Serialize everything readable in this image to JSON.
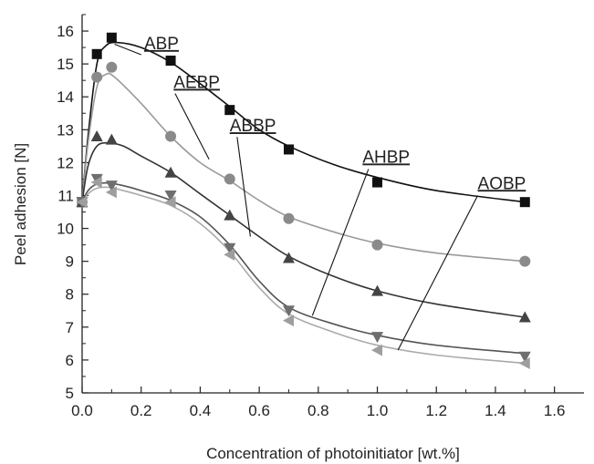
{
  "chart_data": {
    "type": "scatter",
    "xlabel": "Concentration of photoinitiator [wt.%]",
    "ylabel": "Peel adhesion [N]",
    "xlim": [
      0.0,
      1.7
    ],
    "ylim": [
      5,
      16.5
    ],
    "x_ticks": [
      "0.0",
      "0.2",
      "0.4",
      "0.6",
      "0.8",
      "1.0",
      "1.2",
      "1.4",
      "1.6"
    ],
    "y_ticks": [
      "5",
      "6",
      "7",
      "8",
      "9",
      "10",
      "11",
      "12",
      "13",
      "14",
      "15",
      "16"
    ],
    "grid": false,
    "legend": "inline-labels",
    "series": [
      {
        "name": "ABP",
        "marker": "square",
        "color": "#111111",
        "curve_color": "#111111",
        "x": [
          0.0,
          0.05,
          0.1,
          0.3,
          0.5,
          0.7,
          1.0,
          1.5
        ],
        "y": [
          10.8,
          15.3,
          15.8,
          15.1,
          13.6,
          12.4,
          11.4,
          10.8
        ],
        "curve": [
          [
            0.0,
            10.8
          ],
          [
            0.02,
            12.8
          ],
          [
            0.05,
            15.0
          ],
          [
            0.08,
            15.55
          ],
          [
            0.12,
            15.65
          ],
          [
            0.2,
            15.5
          ],
          [
            0.3,
            15.05
          ],
          [
            0.4,
            14.4
          ],
          [
            0.5,
            13.7
          ],
          [
            0.6,
            13.0
          ],
          [
            0.7,
            12.5
          ],
          [
            0.85,
            11.95
          ],
          [
            1.0,
            11.55
          ],
          [
            1.2,
            11.15
          ],
          [
            1.5,
            10.8
          ]
        ],
        "label_at": [
          0.21,
          15.45
        ],
        "leader_from": [
          0.2,
          15.28
        ],
        "leader_to": [
          0.11,
          15.6
        ]
      },
      {
        "name": "AEBP",
        "marker": "circle",
        "color": "#8a8a8a",
        "curve_color": "#9a9a9a",
        "x": [
          0.0,
          0.05,
          0.1,
          0.3,
          0.5,
          0.7,
          1.0,
          1.5
        ],
        "y": [
          10.8,
          14.6,
          14.9,
          12.8,
          11.5,
          10.3,
          9.5,
          9.0
        ],
        "curve": [
          [
            0.0,
            10.8
          ],
          [
            0.02,
            12.6
          ],
          [
            0.05,
            14.3
          ],
          [
            0.08,
            14.68
          ],
          [
            0.11,
            14.6
          ],
          [
            0.2,
            13.8
          ],
          [
            0.3,
            12.8
          ],
          [
            0.4,
            12.0
          ],
          [
            0.5,
            11.45
          ],
          [
            0.6,
            10.85
          ],
          [
            0.7,
            10.35
          ],
          [
            0.85,
            9.9
          ],
          [
            1.0,
            9.55
          ],
          [
            1.2,
            9.25
          ],
          [
            1.5,
            9.0
          ]
        ],
        "label_at": [
          0.31,
          14.27
        ],
        "leader_from": [
          0.315,
          14.1
        ],
        "leader_to": [
          0.43,
          12.1
        ]
      },
      {
        "name": "ABBP",
        "marker": "triangle-up",
        "color": "#444444",
        "curve_color": "#333333",
        "x": [
          0.0,
          0.05,
          0.1,
          0.3,
          0.5,
          0.7,
          1.0,
          1.5
        ],
        "y": [
          10.8,
          12.8,
          12.7,
          11.7,
          10.4,
          9.1,
          8.1,
          7.3
        ],
        "curve": [
          [
            0.0,
            10.8
          ],
          [
            0.02,
            11.9
          ],
          [
            0.05,
            12.5
          ],
          [
            0.09,
            12.6
          ],
          [
            0.14,
            12.5
          ],
          [
            0.2,
            12.2
          ],
          [
            0.3,
            11.7
          ],
          [
            0.4,
            11.05
          ],
          [
            0.5,
            10.4
          ],
          [
            0.6,
            9.75
          ],
          [
            0.7,
            9.15
          ],
          [
            0.85,
            8.55
          ],
          [
            1.0,
            8.1
          ],
          [
            1.2,
            7.7
          ],
          [
            1.5,
            7.3
          ]
        ],
        "label_at": [
          0.5,
          12.95
        ],
        "leader_from": [
          0.525,
          12.78
        ],
        "leader_to": [
          0.57,
          9.75
        ]
      },
      {
        "name": "AHBP",
        "marker": "triangle-down",
        "color": "#6e6e6e",
        "curve_color": "#555555",
        "x": [
          0.0,
          0.05,
          0.1,
          0.3,
          0.5,
          0.7,
          1.0,
          1.5
        ],
        "y": [
          10.8,
          11.5,
          11.3,
          11.0,
          9.4,
          7.5,
          6.7,
          6.1
        ],
        "curve": [
          [
            0.0,
            10.8
          ],
          [
            0.02,
            11.15
          ],
          [
            0.05,
            11.35
          ],
          [
            0.09,
            11.38
          ],
          [
            0.14,
            11.3
          ],
          [
            0.2,
            11.15
          ],
          [
            0.3,
            10.85
          ],
          [
            0.4,
            10.35
          ],
          [
            0.5,
            9.5
          ],
          [
            0.6,
            8.4
          ],
          [
            0.7,
            7.6
          ],
          [
            0.85,
            7.1
          ],
          [
            1.0,
            6.75
          ],
          [
            1.2,
            6.45
          ],
          [
            1.5,
            6.2
          ]
        ],
        "label_at": [
          0.95,
          12.0
        ],
        "leader_from": [
          0.97,
          11.8
        ],
        "leader_to": [
          0.78,
          7.35
        ]
      },
      {
        "name": "AOBP",
        "marker": "triangle-left",
        "color": "#9e9e9e",
        "curve_color": "#aaaaaa",
        "x": [
          0.0,
          0.05,
          0.1,
          0.3,
          0.5,
          0.7,
          1.0,
          1.5
        ],
        "y": [
          10.8,
          11.4,
          11.1,
          10.8,
          9.2,
          7.2,
          6.3,
          5.9
        ],
        "curve": [
          [
            0.0,
            10.8
          ],
          [
            0.02,
            11.05
          ],
          [
            0.05,
            11.22
          ],
          [
            0.09,
            11.25
          ],
          [
            0.14,
            11.15
          ],
          [
            0.2,
            11.0
          ],
          [
            0.3,
            10.7
          ],
          [
            0.4,
            10.15
          ],
          [
            0.5,
            9.3
          ],
          [
            0.6,
            8.2
          ],
          [
            0.7,
            7.4
          ],
          [
            0.85,
            6.85
          ],
          [
            1.0,
            6.45
          ],
          [
            1.2,
            6.15
          ],
          [
            1.5,
            5.9
          ]
        ],
        "label_at": [
          1.34,
          11.2
        ],
        "leader_from": [
          1.34,
          11.0
        ],
        "leader_to": [
          1.07,
          6.3
        ]
      }
    ]
  }
}
